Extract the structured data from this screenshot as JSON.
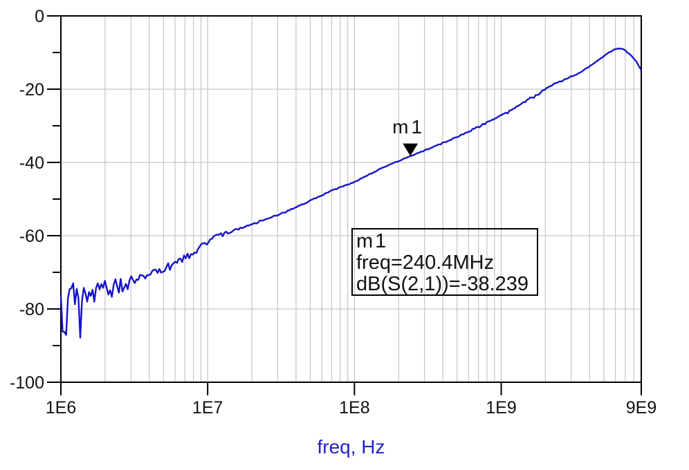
{
  "chart_data": {
    "type": "line",
    "title": "",
    "xlabel": "freq, Hz",
    "ylabel": "",
    "x_scale": "log",
    "xlim_hz": [
      1000000,
      9000000000
    ],
    "ylim_db": [
      -100,
      0
    ],
    "grid": {
      "h_lines_db": [
        -20,
        -40,
        -60,
        -80
      ],
      "v_decades": true,
      "v_minor_multiples": [
        2,
        3,
        4,
        5,
        6,
        7,
        8,
        9
      ]
    },
    "x_ticks": [
      {
        "f": 1000000,
        "label": "1E6"
      },
      {
        "f": 10000000,
        "label": "1E7"
      },
      {
        "f": 100000000,
        "label": "1E8"
      },
      {
        "f": 1000000000,
        "label": "1E9"
      },
      {
        "f": 9000000000,
        "label": "9E9"
      }
    ],
    "y_ticks": [
      {
        "db": 0,
        "label": "0"
      },
      {
        "db": -20,
        "label": "-20"
      },
      {
        "db": -40,
        "label": "-40"
      },
      {
        "db": -60,
        "label": "-60"
      },
      {
        "db": -80,
        "label": "-80"
      },
      {
        "db": -100,
        "label": "-100"
      }
    ],
    "y_minor_tick_step_db": 10,
    "series": [
      {
        "name": "dB(S(2,1))",
        "color": "#1414c8",
        "anchors_logf_db": [
          [
            6.0,
            -75.0
          ],
          [
            6.2,
            -74.3
          ],
          [
            6.4,
            -72.4
          ],
          [
            6.6,
            -69.8
          ],
          [
            6.8,
            -66.6
          ],
          [
            6.95,
            -62.6
          ],
          [
            7.05,
            -59.9
          ],
          [
            7.2,
            -58.0
          ],
          [
            7.4,
            -55.4
          ],
          [
            7.6,
            -52.2
          ],
          [
            7.85,
            -47.5
          ],
          [
            8.0,
            -45.3
          ],
          [
            8.2,
            -41.2
          ],
          [
            8.381,
            -38.24
          ],
          [
            8.55,
            -35.5
          ],
          [
            8.7,
            -33.0
          ],
          [
            8.85,
            -30.0
          ],
          [
            9.0,
            -27.1
          ],
          [
            9.1,
            -24.9
          ],
          [
            9.2,
            -22.3
          ],
          [
            9.3,
            -19.8
          ],
          [
            9.38,
            -18.0
          ],
          [
            9.46,
            -16.8
          ],
          [
            9.54,
            -15.3
          ],
          [
            9.62,
            -13.2
          ],
          [
            9.7,
            -10.9
          ],
          [
            9.76,
            -9.3
          ],
          [
            9.8,
            -8.8
          ],
          [
            9.84,
            -9.2
          ],
          [
            9.88,
            -10.6
          ],
          [
            9.92,
            -12.4
          ],
          [
            9.954,
            -14.8
          ]
        ],
        "noise": {
          "seed": 20240612,
          "amp_at_1e6_db": 9.0,
          "decay_decades": 0.38,
          "floor_db": 0.1,
          "bump_amp_db": 0.35,
          "bump_center_logf": 9.15,
          "bump_sigma": 0.35,
          "spike_prob": 0.12,
          "spike_max_logf": 7.0
        }
      }
    ],
    "marker": {
      "name": "m1",
      "freq_hz": 240400000,
      "db": -38.239,
      "line1": "m1",
      "line2": "freq=240.4MHz",
      "line3": "dB(S(2,1))=-38.239"
    }
  },
  "colors": {
    "background": "#ffffff",
    "axis": "#000000",
    "grid": "#c8c8c8",
    "tick_text": "#111111",
    "curve": "#1414c8",
    "axis_title": "#2222cc",
    "marker": "#000000"
  }
}
